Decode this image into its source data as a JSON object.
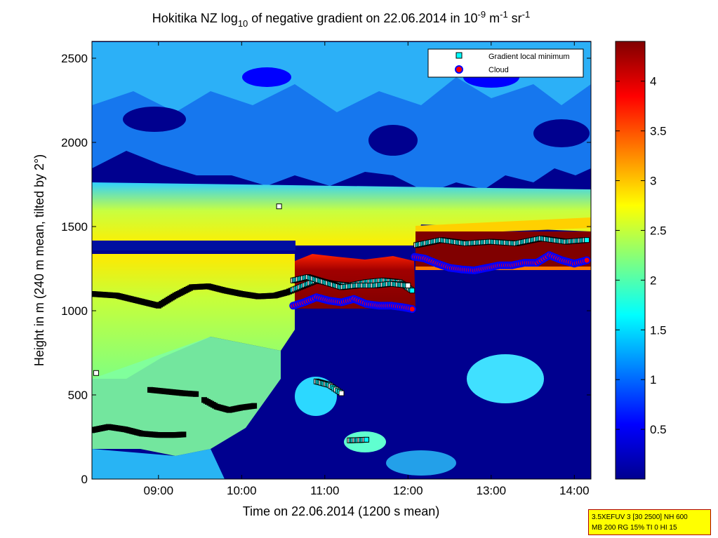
{
  "chart_data": {
    "type": "heatmap",
    "title": {
      "pre": "Hokitika NZ log",
      "sub": "10",
      "mid": " of negative gradient on 22.06.2014 in 10",
      "sup1": "-9",
      "mid2": " m",
      "sup2": "-1",
      "mid3": " sr",
      "sup3": "-1"
    },
    "xlabel": "Time on 22.06.2014 (1200 s mean)",
    "ylabel": "Height in m (240 m mean, tilted by 2°)",
    "xlim": [
      8.2,
      14.2
    ],
    "ylim": [
      0,
      2600
    ],
    "xticks": [
      {
        "value": 9,
        "label": "09:00"
      },
      {
        "value": 10,
        "label": "10:00"
      },
      {
        "value": 11,
        "label": "11:00"
      },
      {
        "value": 12,
        "label": "12:00"
      },
      {
        "value": 13,
        "label": "13:00"
      },
      {
        "value": 14,
        "label": "14:00"
      }
    ],
    "yticks": [
      {
        "value": 0,
        "label": "0"
      },
      {
        "value": 500,
        "label": "500"
      },
      {
        "value": 1000,
        "label": "1000"
      },
      {
        "value": 1500,
        "label": "1500"
      },
      {
        "value": 2000,
        "label": "2000"
      },
      {
        "value": 2500,
        "label": "2500"
      }
    ],
    "colorbar": {
      "range": [
        0,
        4.4
      ],
      "ticks": [
        {
          "value": 0.5,
          "label": "0.5"
        },
        {
          "value": 1,
          "label": "1"
        },
        {
          "value": 1.5,
          "label": "1.5"
        },
        {
          "value": 2,
          "label": "2"
        },
        {
          "value": 2.5,
          "label": "2.5"
        },
        {
          "value": 3,
          "label": "3"
        },
        {
          "value": 3.5,
          "label": "3.5"
        },
        {
          "value": 4,
          "label": "4"
        }
      ],
      "colormap": "jet"
    },
    "legend": {
      "position": "top-right",
      "entries": [
        {
          "label": "Gradient local minimum",
          "marker": "square",
          "color": "#00ffff"
        },
        {
          "label": "Cloud",
          "marker": "circle",
          "color": "#ff0000"
        }
      ]
    },
    "layers": [
      {
        "name": "lower haze layer",
        "x": [
          8.2,
          10.6
        ],
        "y": [
          930,
          1330
        ],
        "value": 2.6
      },
      {
        "name": "residual band",
        "x": [
          8.2,
          10.6
        ],
        "y": [
          1350,
          1420
        ],
        "value": 0.3
      },
      {
        "name": "elevated layer",
        "x": [
          8.2,
          14.2
        ],
        "y": [
          1420,
          1800
        ],
        "value": 2.3
      },
      {
        "name": "cloud layer A",
        "x": [
          10.62,
          12.08
        ],
        "y": [
          1050,
          1280
        ],
        "value": 4.3
      },
      {
        "name": "cloud layer B",
        "x": [
          12.08,
          14.2
        ],
        "y": [
          1300,
          1480
        ],
        "value": 4.4
      }
    ],
    "gradient_local_minimum_series": [
      {
        "name": "layer-top",
        "points": [
          [
            8.2,
            1100
          ],
          [
            8.5,
            1090
          ],
          [
            8.75,
            1060
          ],
          [
            9.0,
            1030
          ],
          [
            9.2,
            1090
          ],
          [
            9.4,
            1140
          ],
          [
            9.6,
            1145
          ],
          [
            9.8,
            1120
          ],
          [
            10.0,
            1100
          ],
          [
            10.2,
            1085
          ],
          [
            10.4,
            1090
          ],
          [
            10.55,
            1110
          ],
          [
            10.7,
            1140
          ],
          [
            10.9,
            1180
          ],
          [
            11.1,
            1160
          ],
          [
            11.3,
            1150
          ],
          [
            11.5,
            1170
          ],
          [
            11.7,
            1180
          ],
          [
            11.9,
            1170
          ],
          [
            12.05,
            1120
          ]
        ]
      },
      {
        "name": "cloud-top-A",
        "points": [
          [
            10.62,
            1180
          ],
          [
            10.8,
            1200
          ],
          [
            11.0,
            1170
          ],
          [
            11.2,
            1140
          ],
          [
            11.4,
            1150
          ],
          [
            11.6,
            1150
          ],
          [
            11.8,
            1160
          ],
          [
            12.0,
            1150
          ]
        ]
      },
      {
        "name": "cloud-top-B",
        "points": [
          [
            12.1,
            1390
          ],
          [
            12.4,
            1420
          ],
          [
            12.7,
            1400
          ],
          [
            13.0,
            1410
          ],
          [
            13.3,
            1400
          ],
          [
            13.6,
            1430
          ],
          [
            13.9,
            1410
          ],
          [
            14.15,
            1420
          ]
        ]
      },
      {
        "name": "low-1",
        "points": [
          [
            8.2,
            290
          ],
          [
            8.4,
            310
          ],
          [
            8.6,
            295
          ],
          [
            8.8,
            270
          ],
          [
            9.0,
            262
          ],
          [
            9.2,
            262
          ],
          [
            9.3,
            265
          ]
        ]
      },
      {
        "name": "low-2",
        "points": [
          [
            8.9,
            530
          ],
          [
            9.1,
            520
          ],
          [
            9.3,
            510
          ],
          [
            9.45,
            505
          ]
        ]
      },
      {
        "name": "low-3",
        "points": [
          [
            9.55,
            470
          ],
          [
            9.7,
            430
          ],
          [
            9.85,
            410
          ],
          [
            10.0,
            425
          ],
          [
            10.15,
            435
          ]
        ]
      },
      {
        "name": "low-4",
        "points": [
          [
            10.9,
            580
          ],
          [
            11.05,
            560
          ],
          [
            11.2,
            510
          ]
        ]
      },
      {
        "name": "low-5",
        "points": [
          [
            11.3,
            230
          ],
          [
            11.42,
            232
          ],
          [
            11.5,
            234
          ]
        ]
      },
      {
        "name": "isolated",
        "points": [
          [
            8.25,
            630
          ],
          [
            10.45,
            1620
          ]
        ]
      }
    ],
    "cloud_series": [
      {
        "name": "cloud-base-A",
        "points": [
          [
            10.62,
            1030
          ],
          [
            10.75,
            1050
          ],
          [
            10.9,
            1080
          ],
          [
            11.05,
            1060
          ],
          [
            11.2,
            1050
          ],
          [
            11.35,
            1070
          ],
          [
            11.5,
            1040
          ],
          [
            11.65,
            1030
          ],
          [
            11.8,
            1030
          ],
          [
            11.95,
            1020
          ],
          [
            12.05,
            1010
          ]
        ]
      },
      {
        "name": "cloud-base-B",
        "points": [
          [
            12.08,
            1320
          ],
          [
            12.2,
            1310
          ],
          [
            12.35,
            1280
          ],
          [
            12.5,
            1255
          ],
          [
            12.65,
            1245
          ],
          [
            12.8,
            1240
          ],
          [
            12.95,
            1255
          ],
          [
            13.1,
            1270
          ],
          [
            13.25,
            1270
          ],
          [
            13.4,
            1285
          ],
          [
            13.55,
            1285
          ],
          [
            13.7,
            1330
          ],
          [
            13.85,
            1300
          ],
          [
            14.0,
            1280
          ],
          [
            14.15,
            1300
          ]
        ]
      }
    ]
  },
  "info_box": {
    "line1": "3.5XEFUV 3 [30 2500] NH 600",
    "line2": "MB 200 RG 15% TI 0 HI 15"
  }
}
